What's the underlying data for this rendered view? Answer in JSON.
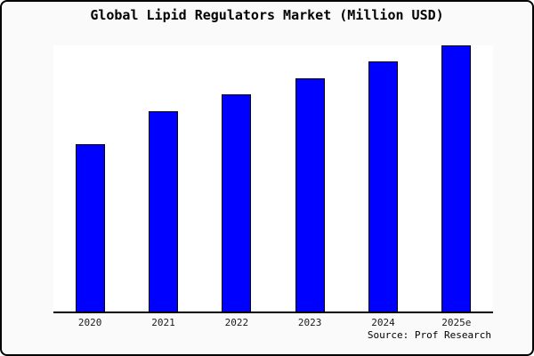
{
  "window": {
    "background_color": "#fafafa",
    "border_color": "#000000"
  },
  "chart_data": {
    "type": "bar",
    "title": "Global Lipid Regulators Market (Million USD)",
    "categories": [
      "2020",
      "2021",
      "2022",
      "2023",
      "2024",
      "2025e"
    ],
    "values": [
      188,
      225,
      244,
      262,
      281,
      299
    ],
    "values_note": "y-axis has no tick labels in source image; values are relative bar magnitudes read from pixel heights",
    "xlabel": "",
    "ylabel": "",
    "ylim": [
      0,
      299
    ],
    "grid": false,
    "legend": false,
    "bar_color": "#0000ff",
    "bar_edge_color": "#000000",
    "plot_background": "#ffffff",
    "axis_color": "#000000",
    "tick_label_color": "#1a1a1a"
  },
  "source": {
    "label": "Source: Prof Research"
  }
}
